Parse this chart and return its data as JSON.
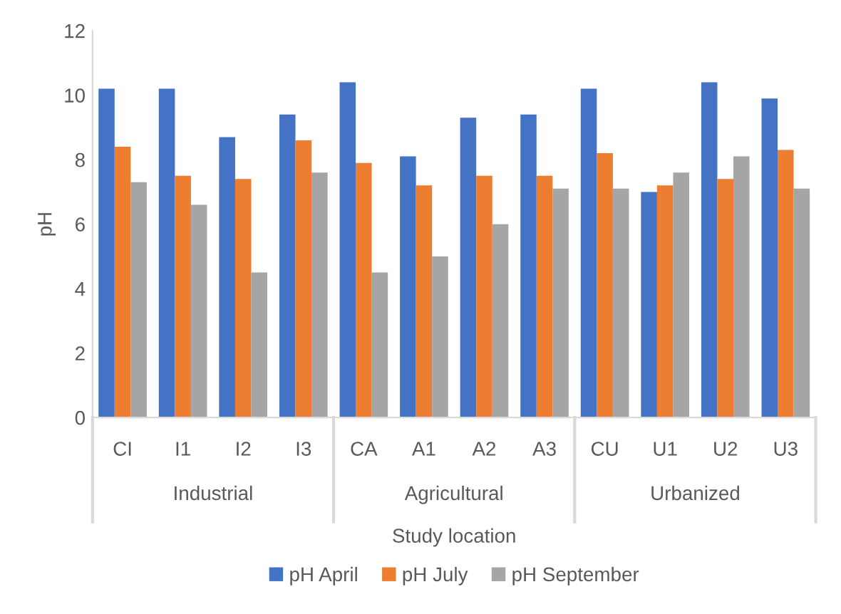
{
  "chart_data": {
    "type": "bar",
    "xlabel": "Study location",
    "ylabel": "pH",
    "categories": [
      "CI",
      "I1",
      "I2",
      "I3",
      "CA",
      "A1",
      "A2",
      "A3",
      "CU",
      "U1",
      "U2",
      "U3"
    ],
    "series": [
      {
        "name": "pH April",
        "color": "#4472c4",
        "values": [
          10.2,
          10.2,
          8.7,
          9.4,
          10.4,
          8.1,
          9.3,
          9.4,
          10.2,
          7.0,
          10.4,
          9.9
        ]
      },
      {
        "name": "pH July",
        "color": "#ed7d31",
        "values": [
          8.4,
          7.5,
          7.4,
          8.6,
          7.9,
          7.2,
          7.5,
          7.5,
          8.2,
          7.2,
          7.4,
          8.3
        ]
      },
      {
        "name": "pH September",
        "color": "#a5a5a5",
        "values": [
          7.3,
          6.6,
          4.5,
          7.6,
          4.5,
          5.0,
          6.0,
          7.1,
          7.1,
          7.6,
          8.1,
          7.1
        ]
      }
    ],
    "annotations": [
      "Industrial",
      "Agricultural",
      "Urbanized"
    ],
    "ylim": [
      0,
      12
    ],
    "yticks": [
      0,
      2,
      4,
      6,
      8,
      10,
      12
    ],
    "grid": false,
    "legend": "bottom"
  }
}
